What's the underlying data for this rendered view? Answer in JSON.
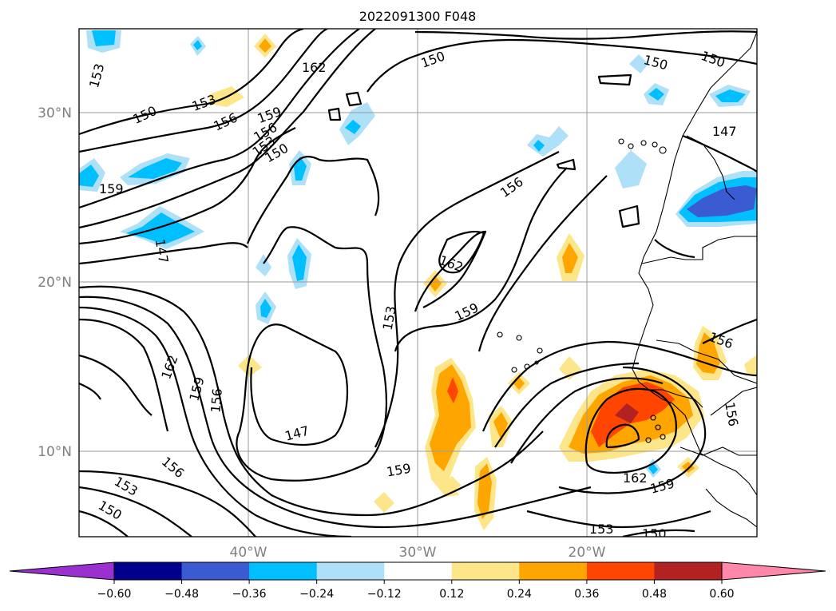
{
  "title": "2022091300 F048",
  "map": {
    "lat_labels": [
      "30°N",
      "20°N",
      "10°N"
    ],
    "lon_labels": [
      "40°W",
      "30°W",
      "20°W"
    ],
    "contour_labels": [
      "153",
      "150",
      "162",
      "153",
      "156",
      "159",
      "156",
      "153",
      "150",
      "159",
      "147",
      "162",
      "159",
      "156",
      "147",
      "156",
      "153",
      "150",
      "150",
      "156",
      "162",
      "159",
      "153",
      "159",
      "162",
      "159",
      "153",
      "150",
      "150",
      "147",
      "156",
      "156",
      "150"
    ]
  },
  "colorbar": {
    "ticks": [
      "−0.60",
      "−0.48",
      "−0.36",
      "−0.24",
      "−0.12",
      "0.12",
      "0.24",
      "0.36",
      "0.48",
      "0.60"
    ],
    "colors": [
      "#9b30d0",
      "#00008b",
      "#3a5bd1",
      "#00bfff",
      "#aee0f7",
      "#ffffff",
      "#fde68a",
      "#ffa500",
      "#ff4500",
      "#b22222",
      "#ff88aa"
    ]
  },
  "colors": {
    "grid": "#9a9a9a",
    "contour": "#000000",
    "axis_label": "#808080"
  }
}
